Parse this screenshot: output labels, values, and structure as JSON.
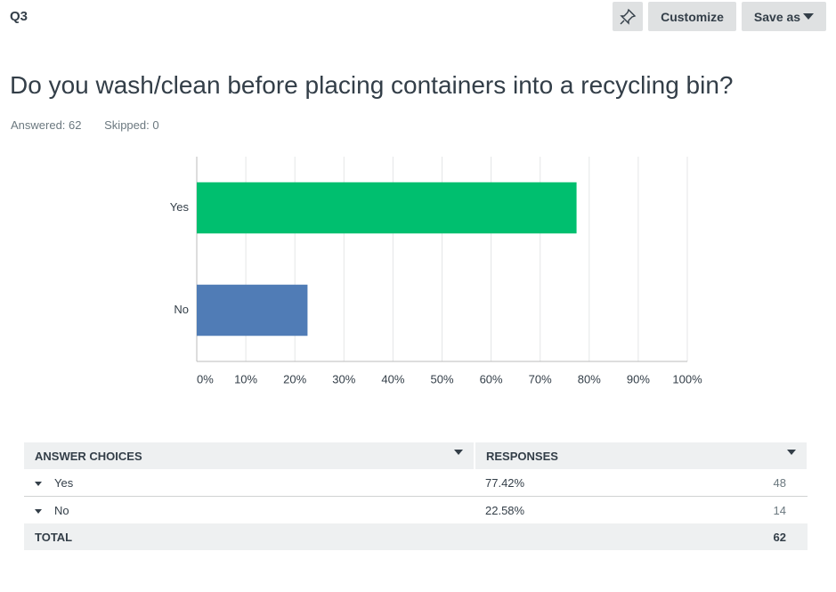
{
  "header": {
    "question_id": "Q3",
    "buttons": [
      "Customize",
      "Save as"
    ]
  },
  "question": "Do you wash/clean before placing containers into a recycling bin?",
  "stats": [
    {
      "label": "Answered:",
      "value": 62
    },
    {
      "label": "Skipped:",
      "value": 0
    }
  ],
  "chart_data": {
    "type": "bar",
    "orientation": "horizontal",
    "categories": [
      "Yes",
      "No"
    ],
    "values": [
      77.42,
      22.58
    ],
    "colors": [
      "#00bf6f",
      "#507cb6"
    ],
    "xlim": [
      0,
      100
    ],
    "xticks": [
      {
        "value": 0,
        "label": "0%"
      },
      {
        "value": 10,
        "label": "10%"
      },
      {
        "value": 20,
        "label": "20%"
      },
      {
        "value": 30,
        "label": "30%"
      },
      {
        "value": 40,
        "label": "40%"
      },
      {
        "value": 50,
        "label": "50%"
      },
      {
        "value": 60,
        "label": "60%"
      },
      {
        "value": 70,
        "label": "70%"
      },
      {
        "value": 80,
        "label": "80%"
      },
      {
        "value": 90,
        "label": "90%"
      },
      {
        "value": 100,
        "label": "100%"
      }
    ],
    "grid": true
  },
  "table": {
    "headers": [
      "ANSWER CHOICES",
      "RESPONSES"
    ],
    "rows": [
      [
        "Yes",
        "77.42%",
        48
      ],
      [
        "No",
        "22.58%",
        14
      ]
    ],
    "total": [
      "TOTAL",
      62
    ]
  }
}
